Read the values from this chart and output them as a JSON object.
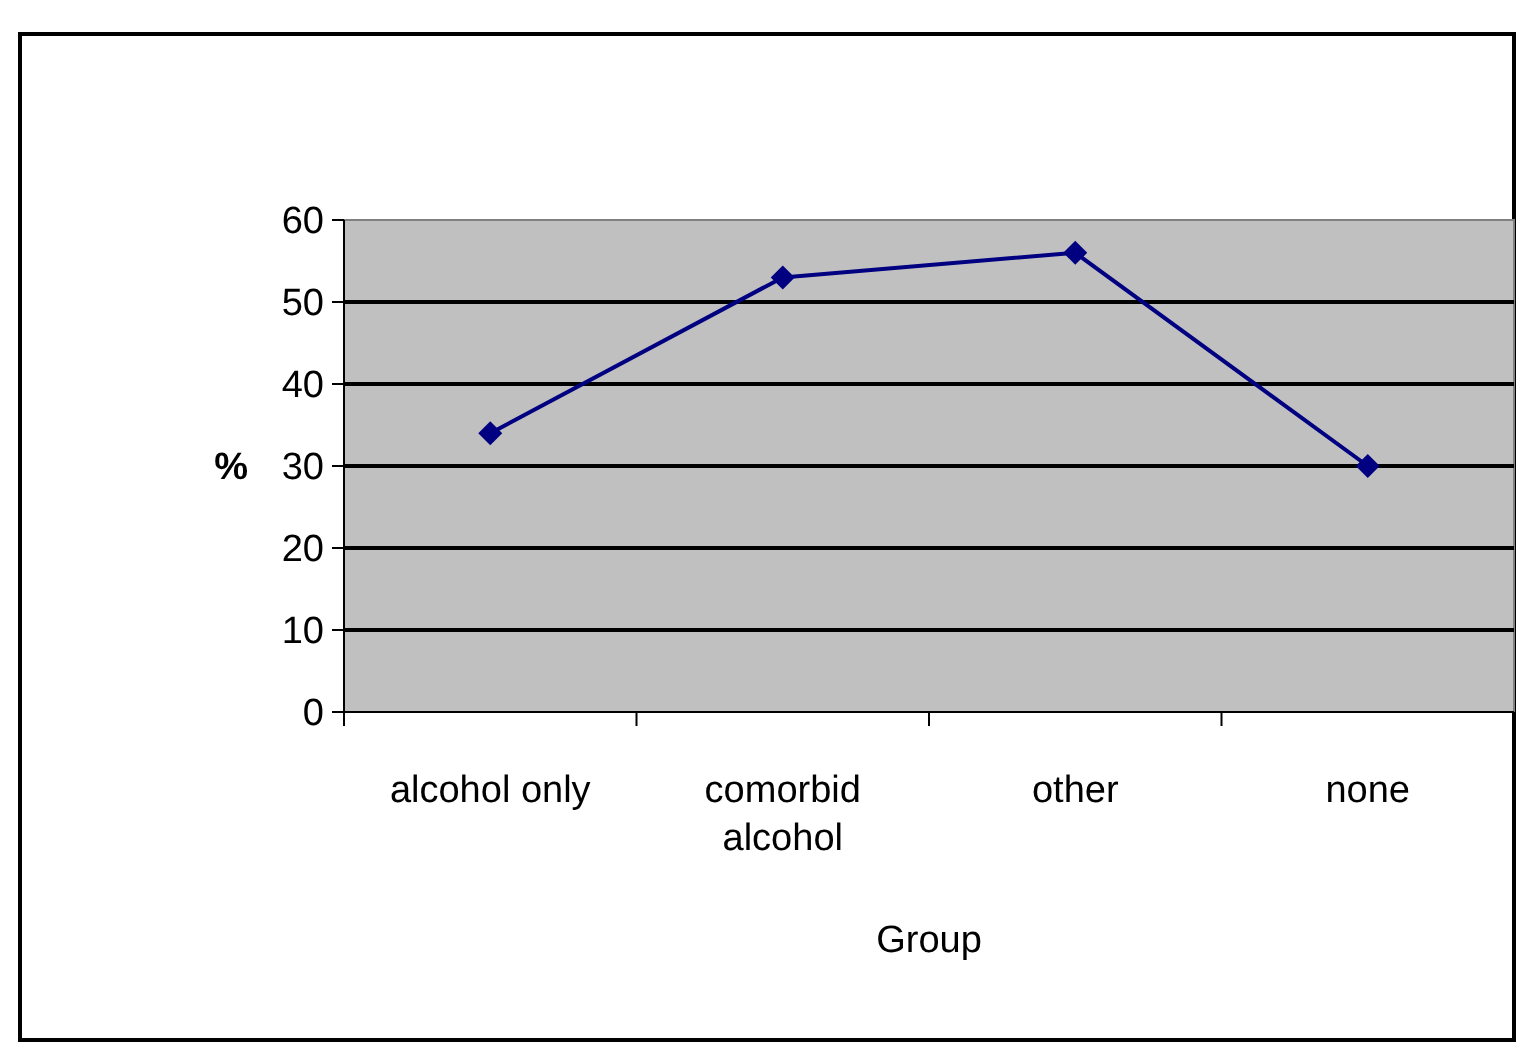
{
  "chart_data": {
    "type": "line",
    "xlabel": "Group",
    "ylabel": "%",
    "categories": [
      "alcohol only",
      "comorbid alcohol",
      "other",
      "none"
    ],
    "series": [
      {
        "color": "#000080",
        "values": [
          34,
          53,
          56,
          30
        ]
      }
    ],
    "ylim": [
      0,
      60
    ],
    "yticks": [
      0,
      10,
      20,
      30,
      40,
      50,
      60
    ],
    "grid": "y",
    "marker": "diamond"
  }
}
